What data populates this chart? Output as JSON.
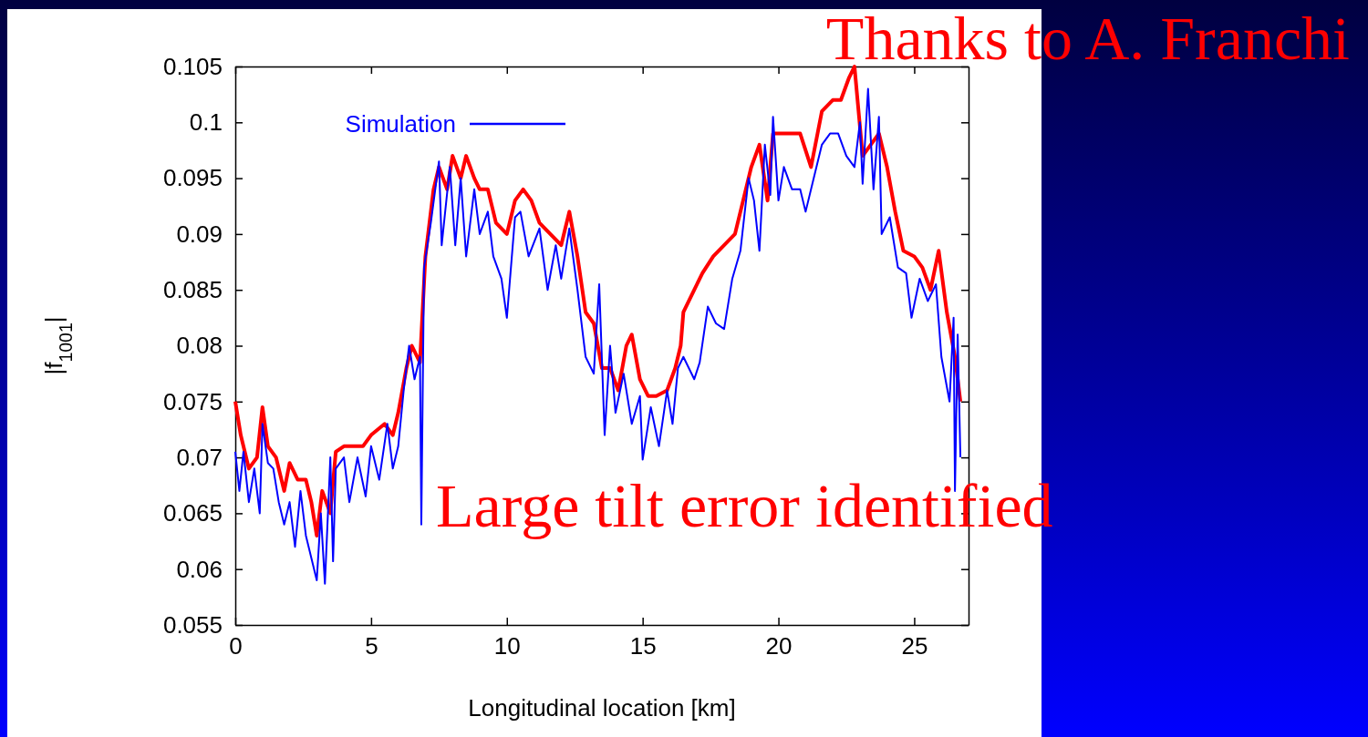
{
  "chart_data": {
    "type": "line",
    "xlabel": "Longitudinal location [km]",
    "ylabel": "|f$_{1001}$|",
    "xlim": [
      0,
      27
    ],
    "xticks": [
      0,
      5,
      10,
      15,
      20,
      25
    ],
    "ylim": [
      0.055,
      0.105
    ],
    "yticks": [
      0.055,
      0.06,
      0.065,
      0.07,
      0.075,
      0.08,
      0.085,
      0.09,
      0.095,
      0.1,
      0.105
    ],
    "legend": "top left",
    "grid": false,
    "line_style": "solid",
    "marker": "none",
    "annotations": [
      "Thanks to A. Franchi",
      "Large tilt error identified"
    ],
    "series": [
      {
        "color": "#ff0000",
        "x": [
          0,
          0.2,
          0.5,
          0.8,
          1.0,
          1.2,
          1.5,
          1.8,
          2.0,
          2.3,
          2.6,
          2.8,
          3.0,
          3.2,
          3.5,
          3.7,
          4.0,
          4.3,
          4.7,
          5.0,
          5.5,
          5.8,
          6.0,
          6.3,
          6.5,
          6.8,
          7.0,
          7.3,
          7.5,
          7.8,
          8.0,
          8.3,
          8.5,
          8.8,
          9.0,
          9.3,
          9.6,
          10.0,
          10.3,
          10.6,
          10.9,
          11.2,
          11.6,
          12.0,
          12.3,
          12.6,
          12.9,
          13.2,
          13.5,
          13.8,
          14.1,
          14.4,
          14.6,
          14.9,
          15.2,
          15.5,
          15.9,
          16.2,
          16.4,
          16.5,
          16.9,
          17.2,
          17.6,
          18.0,
          18.4,
          18.7,
          19.0,
          19.3,
          19.6,
          19.8,
          20.3,
          20.8,
          21.2,
          21.6,
          22.0,
          22.3,
          22.6,
          22.8,
          23.1,
          23.4,
          23.7,
          24.0,
          24.3,
          24.6,
          25.0,
          25.3,
          25.6,
          25.9,
          26.2,
          26.5,
          26.7
        ],
        "values": [
          0.075,
          0.072,
          0.069,
          0.07,
          0.0745,
          0.071,
          0.07,
          0.067,
          0.0695,
          0.068,
          0.068,
          0.066,
          0.063,
          0.067,
          0.065,
          0.0705,
          0.071,
          0.071,
          0.071,
          0.072,
          0.073,
          0.072,
          0.074,
          0.078,
          0.08,
          0.0785,
          0.088,
          0.094,
          0.096,
          0.094,
          0.097,
          0.095,
          0.097,
          0.095,
          0.094,
          0.094,
          0.091,
          0.09,
          0.093,
          0.094,
          0.093,
          0.091,
          0.09,
          0.089,
          0.092,
          0.088,
          0.083,
          0.082,
          0.078,
          0.078,
          0.076,
          0.08,
          0.081,
          0.077,
          0.0755,
          0.0755,
          0.076,
          0.078,
          0.08,
          0.083,
          0.085,
          0.0865,
          0.088,
          0.089,
          0.09,
          0.093,
          0.096,
          0.098,
          0.093,
          0.099,
          0.099,
          0.099,
          0.096,
          0.101,
          0.102,
          0.102,
          0.104,
          0.105,
          0.097,
          0.098,
          0.099,
          0.096,
          0.092,
          0.0885,
          0.088,
          0.087,
          0.085,
          0.0885,
          0.083,
          0.079,
          0.075
        ]
      },
      {
        "name": "Simulation",
        "color": "#0000ff",
        "x": [
          0,
          0.15,
          0.3,
          0.5,
          0.7,
          0.9,
          1.0,
          1.2,
          1.4,
          1.6,
          1.8,
          2.0,
          2.2,
          2.4,
          2.6,
          2.8,
          3.0,
          3.15,
          3.3,
          3.5,
          3.6,
          3.7,
          4.0,
          4.2,
          4.5,
          4.8,
          5.0,
          5.3,
          5.6,
          5.8,
          6.0,
          6.2,
          6.4,
          6.6,
          6.8,
          6.85,
          6.95,
          7.2,
          7.5,
          7.6,
          7.9,
          8.1,
          8.3,
          8.5,
          8.8,
          9.0,
          9.3,
          9.5,
          9.8,
          10.0,
          10.3,
          10.5,
          10.8,
          11.2,
          11.5,
          11.8,
          12.0,
          12.3,
          12.6,
          12.9,
          13.2,
          13.4,
          13.6,
          13.8,
          14.0,
          14.3,
          14.6,
          14.9,
          15.0,
          15.3,
          15.6,
          15.9,
          16.1,
          16.3,
          16.5,
          16.9,
          17.1,
          17.4,
          17.7,
          18.0,
          18.3,
          18.6,
          18.9,
          19.1,
          19.3,
          19.5,
          19.7,
          19.8,
          20.0,
          20.2,
          20.5,
          20.8,
          21.0,
          21.3,
          21.6,
          21.9,
          22.2,
          22.5,
          22.8,
          23.0,
          23.1,
          23.3,
          23.5,
          23.7,
          23.8,
          24.1,
          24.4,
          24.7,
          24.9,
          25.2,
          25.5,
          25.8,
          26.0,
          26.3,
          26.45,
          26.5,
          26.6,
          26.7
        ],
        "values": [
          0.0705,
          0.067,
          0.0705,
          0.066,
          0.069,
          0.065,
          0.073,
          0.0695,
          0.069,
          0.066,
          0.064,
          0.066,
          0.062,
          0.067,
          0.063,
          0.061,
          0.059,
          0.065,
          0.0587,
          0.07,
          0.0607,
          0.069,
          0.07,
          0.066,
          0.07,
          0.0665,
          0.071,
          0.068,
          0.073,
          0.069,
          0.071,
          0.076,
          0.08,
          0.077,
          0.079,
          0.064,
          0.087,
          0.091,
          0.0965,
          0.089,
          0.096,
          0.089,
          0.095,
          0.088,
          0.094,
          0.09,
          0.092,
          0.088,
          0.086,
          0.0825,
          0.0915,
          0.092,
          0.088,
          0.0905,
          0.085,
          0.089,
          0.086,
          0.0905,
          0.085,
          0.079,
          0.0775,
          0.0855,
          0.072,
          0.08,
          0.074,
          0.0775,
          0.073,
          0.0755,
          0.0698,
          0.0745,
          0.071,
          0.076,
          0.073,
          0.078,
          0.079,
          0.077,
          0.0785,
          0.0835,
          0.082,
          0.0815,
          0.086,
          0.0885,
          0.095,
          0.093,
          0.0885,
          0.098,
          0.0935,
          0.1005,
          0.093,
          0.096,
          0.094,
          0.094,
          0.092,
          0.095,
          0.098,
          0.099,
          0.099,
          0.097,
          0.096,
          0.1,
          0.0945,
          0.103,
          0.094,
          0.1005,
          0.09,
          0.0915,
          0.087,
          0.0865,
          0.0825,
          0.086,
          0.084,
          0.0855,
          0.079,
          0.075,
          0.0825,
          0.067,
          0.081,
          0.07
        ]
      }
    ]
  }
}
